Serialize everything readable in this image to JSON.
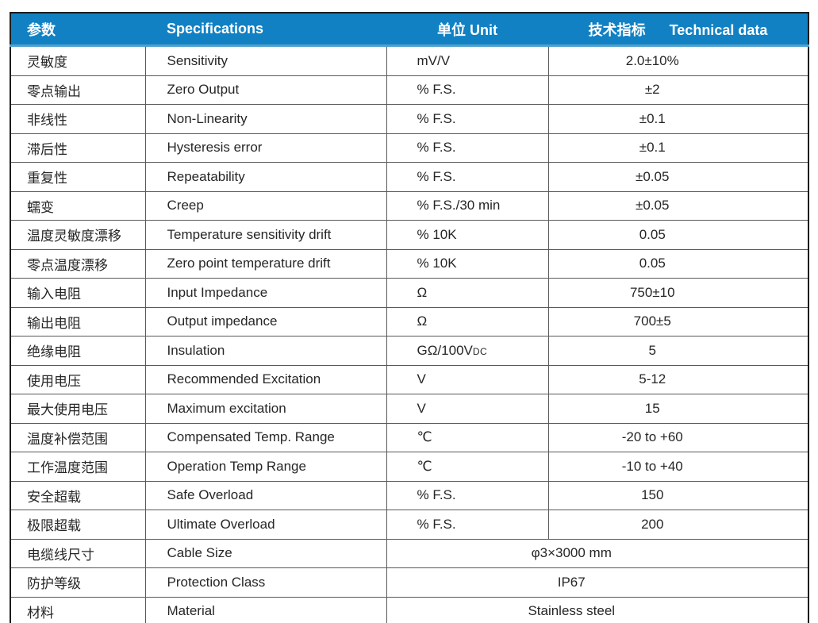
{
  "table": {
    "header": {
      "param": "参数",
      "spec": "Specifications",
      "unit": "单位 Unit",
      "data_zh": "技术指标",
      "data_en": "Technical data"
    },
    "rows": [
      {
        "param": "灵敏度",
        "spec": "Sensitivity",
        "unit": "mV/V",
        "value": "2.0±10%"
      },
      {
        "param": "零点输出",
        "spec": "Zero Output",
        "unit": "% F.S.",
        "value": "±2"
      },
      {
        "param": "非线性",
        "spec": "Non-Linearity",
        "unit": "% F.S.",
        "value": "±0.1"
      },
      {
        "param": "滞后性",
        "spec": "Hysteresis error",
        "unit": "% F.S.",
        "value": "±0.1"
      },
      {
        "param": "重复性",
        "spec": "Repeatability",
        "unit": "% F.S.",
        "value": "±0.05"
      },
      {
        "param": "蠕变",
        "spec": "Creep",
        "unit": "% F.S./30 min",
        "value": "±0.05"
      },
      {
        "param": "温度灵敏度漂移",
        "spec": "Temperature sensitivity drift",
        "unit": "% 10K",
        "value": "0.05"
      },
      {
        "param": "零点温度漂移",
        "spec": "Zero point temperature drift",
        "unit": "% 10K",
        "value": "0.05"
      },
      {
        "param": "输入电阻",
        "spec": "Input Impedance",
        "unit": "Ω",
        "value": "750±10"
      },
      {
        "param": "输出电阻",
        "spec": "Output impedance",
        "unit": "Ω",
        "value": "700±5"
      },
      {
        "param": "绝缘电阻",
        "spec": "Insulation",
        "unit": "GΩ/100V",
        "unit_sub": "DC",
        "value": "5"
      },
      {
        "param": "使用电压",
        "spec": "Recommended Excitation",
        "unit": "V",
        "value": "5-12"
      },
      {
        "param": "最大使用电压",
        "spec": "Maximum excitation",
        "unit": "V",
        "value": "15"
      },
      {
        "param": "温度补偿范围",
        "spec": "Compensated Temp. Range",
        "unit": "℃",
        "value": "-20 to +60"
      },
      {
        "param": "工作温度范围",
        "spec": "Operation Temp Range",
        "unit": "℃",
        "value": "-10 to +40"
      },
      {
        "param": "安全超载",
        "spec": "Safe Overload",
        "unit": "% F.S.",
        "value": "150"
      },
      {
        "param": "极限超载",
        "spec": "Ultimate Overload",
        "unit": "% F.S.",
        "value": "200"
      },
      {
        "param": "电缆线尺寸",
        "spec": "Cable Size",
        "merged_value": "φ3×3000 mm"
      },
      {
        "param": "防护等级",
        "spec": "Protection Class",
        "merged_value": "IP67"
      },
      {
        "param": "材料",
        "spec": "Material",
        "merged_value": "Stainless steel"
      }
    ],
    "colors": {
      "header_background": "#1181c4",
      "header_text": "#ffffff",
      "header_bottom_strip": "#4fa0cf",
      "body_text": "#262626",
      "outer_border": "#1c1c1c",
      "inner_border": "#595959"
    }
  }
}
